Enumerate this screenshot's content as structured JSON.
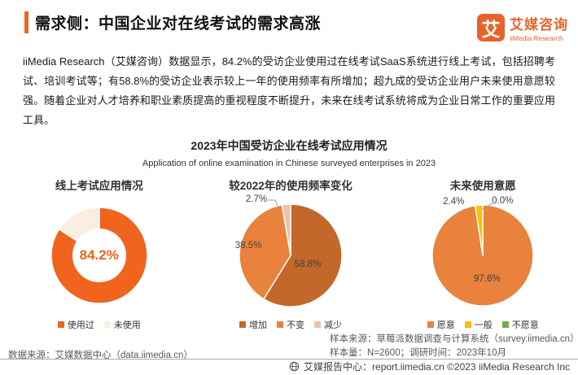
{
  "header": {
    "title": "需求侧：中国企业对在线考试的需求高涨",
    "logo": {
      "mark": "艾",
      "cn": "艾媒咨询",
      "en": "iiMedia Research"
    }
  },
  "intro": "iiMedia Research（艾媒咨询）数据显示，84.2%的受访企业使用过在线考试SaaS系统进行线上考试，包括招聘考试、培训考试等；有58.8%的受访企业表示较上一年的使用频率有所增加；超九成的受访企业用户未来使用意愿较强。随着企业对人才培养和职业素质提高的重视程度不断提升，未来在线考试系统将成为企业日常工作的重要应用工具。",
  "chart_header": {
    "title_cn": "2023年中国受访企业在线考试应用情况",
    "title_en": "Application of online examination in Chinese surveyed enterprises in 2023"
  },
  "chart_data": [
    {
      "type": "pie",
      "variant": "donut",
      "title": "线上考试应用情况",
      "labels": [
        "使用过",
        "未使用"
      ],
      "values": [
        84.2,
        15.8
      ],
      "colors": [
        "#F0641E",
        "#FBEDE2"
      ],
      "center_label": "84.2%",
      "legend_position": "bottom"
    },
    {
      "type": "pie",
      "title": "较2022年的使用频率变化",
      "labels": [
        "增加",
        "不变",
        "减少"
      ],
      "values": [
        58.8,
        38.5,
        2.7
      ],
      "colors": [
        "#C3682A",
        "#E8823C",
        "#F2C0AB"
      ],
      "value_labels": [
        "58.8%",
        "38.5%",
        "2.7%"
      ],
      "legend_position": "bottom"
    },
    {
      "type": "pie",
      "title": "未来使用意愿",
      "labels": [
        "愿意",
        "一般",
        "不愿意"
      ],
      "values": [
        97.6,
        2.4,
        0.0
      ],
      "colors": [
        "#E8823C",
        "#FFC000",
        "#70AD47"
      ],
      "value_labels": [
        "97.6%",
        "2.4%",
        "0.0%"
      ],
      "legend_position": "bottom"
    }
  ],
  "sources": {
    "data_source": "数据来源：艾媒数据中心（data.iimedia.cn）",
    "sample_source": "样本来源：草莓派数据调查与计算系统（survey.iimedia.cn）",
    "sample_info": "样本量：N=2600；调研时间：2023年10月"
  },
  "footer": {
    "text": "艾媒报告中心：report.iimedia.cn  ©2023 iiMedia Research Inc"
  }
}
